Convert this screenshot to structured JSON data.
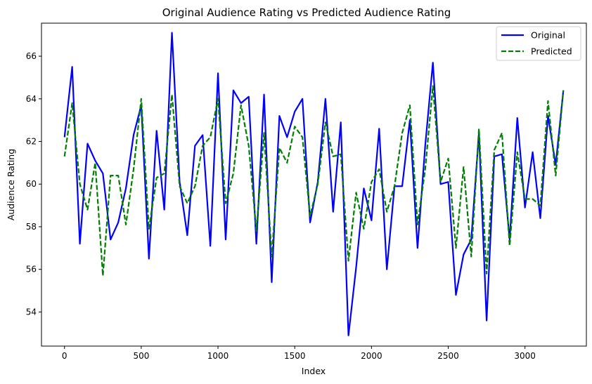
{
  "chart_data": {
    "type": "line",
    "title": "Original Audience Rating vs Predicted Audience Rating",
    "xlabel": "Index",
    "ylabel": "Audience Rating",
    "xlim": [
      -150,
      3400
    ],
    "ylim": [
      52.4,
      67.55
    ],
    "xticks": [
      0,
      500,
      1000,
      1500,
      2000,
      2500,
      3000
    ],
    "yticks": [
      54,
      56,
      58,
      60,
      62,
      64,
      66
    ],
    "grid": false,
    "legend_position": "top-right",
    "x": [
      0,
      50,
      100,
      150,
      200,
      250,
      300,
      350,
      400,
      450,
      500,
      550,
      600,
      650,
      700,
      750,
      800,
      850,
      900,
      950,
      1000,
      1050,
      1100,
      1150,
      1200,
      1250,
      1300,
      1350,
      1400,
      1450,
      1500,
      1550,
      1600,
      1650,
      1700,
      1750,
      1800,
      1850,
      1900,
      1950,
      2000,
      2050,
      2100,
      2150,
      2200,
      2250,
      2300,
      2350,
      2400,
      2450,
      2500,
      2550,
      2600,
      2650,
      2700,
      2750,
      2800,
      2850,
      2900,
      2950,
      3000,
      3050,
      3100,
      3150,
      3200,
      3250
    ],
    "series": [
      {
        "name": "Original",
        "color": "#0000ff",
        "style": "solid",
        "values": [
          62.2,
          65.5,
          57.2,
          61.9,
          61.1,
          60.5,
          57.4,
          58.2,
          59.8,
          62.3,
          63.7,
          56.5,
          62.5,
          58.8,
          67.1,
          60.1,
          57.6,
          61.8,
          62.3,
          57.1,
          65.2,
          57.4,
          64.4,
          63.8,
          64.1,
          57.2,
          64.2,
          55.4,
          63.2,
          62.2,
          63.4,
          64.0,
          58.2,
          60.1,
          64.0,
          58.7,
          62.9,
          52.9,
          56.1,
          59.8,
          58.3,
          62.6,
          56.0,
          59.9,
          59.9,
          63.0,
          57.0,
          61.8,
          65.7,
          60.0,
          60.1,
          54.8,
          56.7,
          57.4,
          62.4,
          53.6,
          61.3,
          61.4,
          57.4,
          63.1,
          58.9,
          61.5,
          58.4,
          63.2,
          60.9,
          64.4
        ]
      },
      {
        "name": "Predicted",
        "color": "#008000",
        "style": "dashed",
        "values": [
          61.3,
          63.8,
          60.0,
          58.8,
          61.0,
          55.7,
          60.4,
          60.4,
          58.1,
          60.7,
          64.0,
          57.9,
          60.3,
          60.5,
          64.2,
          59.9,
          59.1,
          59.9,
          61.8,
          62.2,
          64.0,
          59.1,
          60.5,
          63.7,
          61.8,
          57.8,
          62.4,
          56.6,
          61.7,
          61.0,
          62.7,
          62.2,
          58.5,
          60.0,
          62.9,
          61.3,
          61.4,
          56.4,
          59.6,
          57.9,
          60.1,
          60.7,
          58.7,
          59.9,
          62.4,
          63.7,
          58.1,
          60.7,
          64.6,
          60.1,
          61.2,
          57.0,
          60.8,
          56.6,
          62.6,
          55.8,
          61.6,
          62.4,
          57.1,
          61.5,
          59.3,
          59.3,
          59.0,
          63.9,
          60.4,
          64.4
        ]
      }
    ]
  }
}
